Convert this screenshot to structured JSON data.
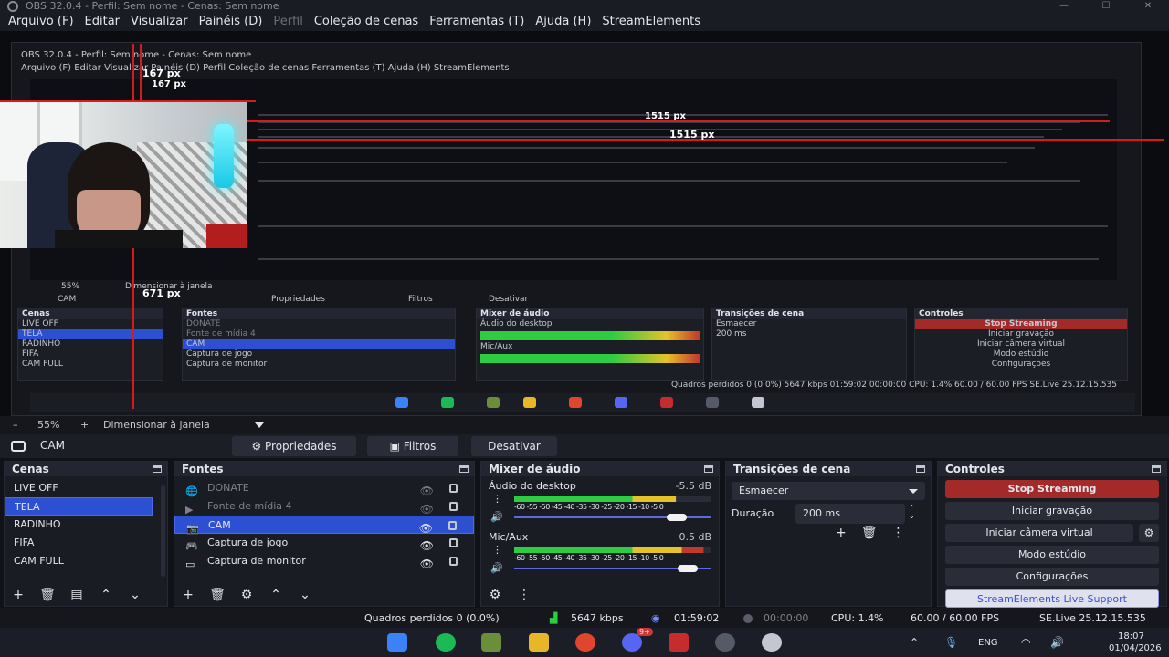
{
  "window": {
    "title": "OBS 32.0.4 - Perfil: Sem nome - Cenas: Sem nome",
    "minimize": "—",
    "maximize": "☐",
    "close": "✕"
  },
  "menu": [
    {
      "label": "Arquivo (F)",
      "dim": false
    },
    {
      "label": "Editar",
      "dim": false
    },
    {
      "label": "Visualizar",
      "dim": false
    },
    {
      "label": "Painéis (D)",
      "dim": false
    },
    {
      "label": "Perfil",
      "dim": true
    },
    {
      "label": "Coleção de cenas",
      "dim": false
    },
    {
      "label": "Ferramentas (T)",
      "dim": false
    },
    {
      "label": "Ajuda (H)",
      "dim": false
    },
    {
      "label": "StreamElements",
      "dim": false
    }
  ],
  "preview": {
    "nested_title": "OBS 32.0.4 - Perfil: Sem nome - Cenas: Sem nome",
    "nested_menu": "Arquivo (F)   Editar   Visualizar   Painéis (D)   Perfil   Coleção de cenas   Ferramentas (T)   Ajuda (H)   StreamElements",
    "labels": [
      "167 px",
      "167 px",
      "1515 px",
      "1515 px",
      "671 px"
    ],
    "nested_zoom": "55%",
    "nested_fit": "Dimensionar à janela",
    "nested_source": "CAM",
    "nested_props": "Propriedades",
    "nested_filters": "Filtros",
    "nested_disable": "Desativar",
    "nested_status": "Quadros perdidos 0 (0.0%)   5647 kbps   01:59:02   00:00:00   CPU: 1.4%   60.00 / 60.00 FPS   SE.Live 25.12.15.535"
  },
  "zoombar": {
    "minus": "–",
    "zoom": "55%",
    "plus": "+",
    "fit": "Dimensionar à janela"
  },
  "context": {
    "source": "CAM",
    "properties": "Propriedades",
    "filters": "Filtros",
    "disable": "Desativar"
  },
  "scenes": {
    "title": "Cenas",
    "items": [
      "LIVE OFF",
      "TELA",
      "RADINHO",
      "FIFA",
      "CAM FULL"
    ],
    "selected": 1
  },
  "sources": {
    "title": "Fontes",
    "items": [
      {
        "label": "DONATE",
        "icon": "browser-icon",
        "dim": true
      },
      {
        "label": "Fonte de mídia 4",
        "icon": "play-icon",
        "dim": true
      },
      {
        "label": "CAM",
        "icon": "camera-icon",
        "dim": false,
        "selected": true
      },
      {
        "label": "Captura de jogo",
        "icon": "gamepad-icon",
        "dim": false
      },
      {
        "label": "Captura de monitor",
        "icon": "monitor-icon",
        "dim": false
      }
    ]
  },
  "mixer": {
    "title": "Mixer de áudio",
    "scale": "-60 -55 -50 -45 -40 -35 -30 -25 -20 -15 -10 -5 0",
    "channels": [
      {
        "name": "Áudio do desktop",
        "db": "-5.5 dB",
        "level": 0.82,
        "volume": 0.92
      },
      {
        "name": "Mic/Aux",
        "db": "0.5 dB",
        "level": 0.96,
        "volume": 0.98
      }
    ]
  },
  "transitions": {
    "title": "Transições de cena",
    "selected": "Esmaecer",
    "duration_label": "Duração",
    "duration_value": "200 ms"
  },
  "controls": {
    "title": "Controles",
    "stream": "Stop Streaming",
    "record": "Iniciar gravação",
    "vcam": "Iniciar câmera virtual",
    "studio": "Modo estúdio",
    "settings": "Configurações",
    "se": "StreamElements Live Support"
  },
  "status": {
    "dropped": "Quadros perdidos 0 (0.0%)",
    "bitrate": "5647 kbps",
    "stream_time": "01:59:02",
    "rec_time": "00:00:00",
    "cpu": "CPU: 1.4%",
    "fps": "60.00 / 60.00 FPS",
    "se": "SE.Live 25.12.15.535"
  },
  "taskbar": {
    "lang": "ENG",
    "time": "18:07",
    "date": "01/04/2026",
    "badge": "9+"
  },
  "colors": {
    "accent": "#2d4fd1",
    "stream_button": "#a42a2a",
    "meter_green": "#2ecc40",
    "meter_yellow": "#e6c229",
    "meter_red": "#c0392b",
    "guide_red": "#d41c1c"
  }
}
